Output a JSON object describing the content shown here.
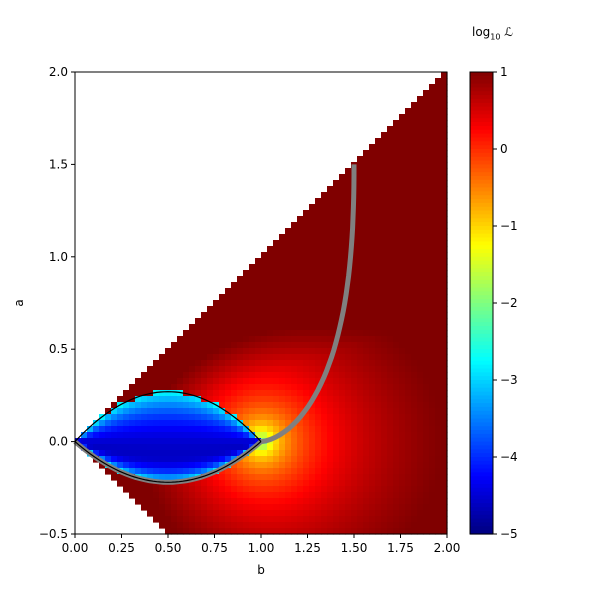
{
  "chart_data": {
    "type": "heatmap",
    "title": "",
    "xlabel": "b",
    "ylabel": "a",
    "xlim": [
      0.0,
      2.0
    ],
    "ylim": [
      -0.5,
      2.0
    ],
    "x_ticks": [
      "0.00",
      "0.25",
      "0.50",
      "0.75",
      "1.00",
      "1.25",
      "1.50",
      "1.75",
      "2.00"
    ],
    "y_ticks": [
      "−0.5",
      "0.0",
      "0.5",
      "1.0",
      "1.5",
      "2.0"
    ],
    "valid_region": "triangle with vertices (b,a) = (0,0), (2,2), (2,-0.5), (0.5,-0.5)",
    "colormap": "jet",
    "colorbar": {
      "label": "log₁₀ ℒ",
      "range": [
        -5,
        1
      ],
      "ticks": [
        "1",
        "0",
        "−1",
        "−2",
        "−3",
        "−4",
        "−5"
      ]
    },
    "curves": [
      {
        "kind": "upper-arc",
        "color": "#000000",
        "b": [
          0,
          0.25,
          0.5,
          0.75,
          1.0
        ],
        "a": [
          0,
          0.21,
          0.27,
          0.21,
          0
        ]
      },
      {
        "kind": "lower-arc",
        "color": "#000000",
        "b": [
          0,
          0.25,
          0.5,
          0.75,
          1.0
        ],
        "a": [
          0,
          -0.17,
          -0.22,
          -0.17,
          0
        ]
      },
      {
        "kind": "gray-path",
        "color": "#808080",
        "b": [
          0,
          0.25,
          0.5,
          0.75,
          1.0,
          1.2,
          1.35,
          1.45,
          1.5
        ],
        "a": [
          0,
          -0.17,
          -0.22,
          -0.17,
          0,
          0.25,
          0.6,
          1.05,
          1.5
        ]
      }
    ]
  }
}
